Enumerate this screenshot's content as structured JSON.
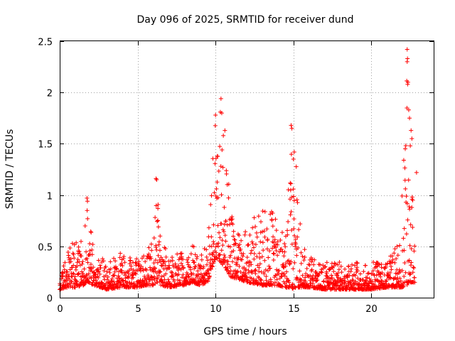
{
  "chart_data": {
    "type": "scatter",
    "title": "Day 096 of 2025, SRMTID for receiver dund",
    "xlabel": "GPS time / hours",
    "ylabel": "SRMTID / TECUs",
    "xlim": [
      0,
      24
    ],
    "ylim": [
      0,
      2.5
    ],
    "xticks": [
      0,
      5,
      10,
      15,
      20
    ],
    "xtick_labels": [
      "0",
      "5",
      "10",
      "15",
      "20"
    ],
    "yticks": [
      0,
      0.5,
      1,
      1.5,
      2,
      2.5
    ],
    "ytick_labels": [
      "0",
      "0.5",
      "1",
      "1.5",
      "2",
      "2.5"
    ],
    "grid": true,
    "marker": "+",
    "series": [
      {
        "name": "SRMTID",
        "color": "#ff0000",
        "envelope": {
          "hours": [
            0,
            0.5,
            1,
            1.5,
            1.8,
            2.2,
            3,
            4,
            5,
            5.5,
            6,
            6.3,
            6.5,
            7,
            8,
            8.5,
            9,
            9.5,
            9.8,
            10.0,
            10.3,
            10.6,
            11,
            11.5,
            12,
            13,
            14,
            14.5,
            14.9,
            15.2,
            15.6,
            16,
            17,
            18,
            19,
            20,
            21,
            21.9,
            22.2,
            22.4,
            22.6,
            22.8
          ],
          "low": [
            0.08,
            0.1,
            0.1,
            0.12,
            0.15,
            0.12,
            0.08,
            0.1,
            0.1,
            0.12,
            0.12,
            0.15,
            0.12,
            0.1,
            0.12,
            0.15,
            0.12,
            0.15,
            0.3,
            0.4,
            0.35,
            0.3,
            0.2,
            0.18,
            0.15,
            0.12,
            0.12,
            0.1,
            0.08,
            0.1,
            0.1,
            0.1,
            0.08,
            0.08,
            0.08,
            0.08,
            0.1,
            0.1,
            0.1,
            0.15,
            0.15,
            0.15
          ],
          "high": [
            0.25,
            0.45,
            0.6,
            0.55,
            0.97,
            0.45,
            0.35,
            0.45,
            0.4,
            0.45,
            0.55,
            1.15,
            0.6,
            0.4,
            0.45,
            0.55,
            0.4,
            0.55,
            1.3,
            1.78,
            1.94,
            1.6,
            0.85,
            0.65,
            0.7,
            0.9,
            0.8,
            0.6,
            1.68,
            1.42,
            0.5,
            0.4,
            0.35,
            0.35,
            0.35,
            0.35,
            0.35,
            0.6,
            2.42,
            1.65,
            1.22,
            0.6
          ]
        },
        "spikes": [
          {
            "x": 1.75,
            "y": 0.97
          },
          {
            "x": 1.78,
            "y": 0.94
          },
          {
            "x": 1.76,
            "y": 0.85
          },
          {
            "x": 6.18,
            "y": 1.16
          },
          {
            "x": 6.22,
            "y": 1.15
          },
          {
            "x": 6.3,
            "y": 0.87
          },
          {
            "x": 10.35,
            "y": 1.94
          },
          {
            "x": 10.0,
            "y": 1.78
          },
          {
            "x": 10.4,
            "y": 1.8
          },
          {
            "x": 10.6,
            "y": 1.63
          },
          {
            "x": 10.5,
            "y": 1.58
          },
          {
            "x": 14.85,
            "y": 1.68
          },
          {
            "x": 14.9,
            "y": 1.65
          },
          {
            "x": 15.05,
            "y": 1.42
          },
          {
            "x": 15.0,
            "y": 1.35
          },
          {
            "x": 22.3,
            "y": 2.42
          },
          {
            "x": 22.32,
            "y": 2.33
          },
          {
            "x": 22.3,
            "y": 2.3
          },
          {
            "x": 22.35,
            "y": 2.1
          },
          {
            "x": 22.33,
            "y": 2.08
          },
          {
            "x": 22.4,
            "y": 1.83
          },
          {
            "x": 22.45,
            "y": 1.75
          },
          {
            "x": 22.55,
            "y": 1.63
          },
          {
            "x": 22.6,
            "y": 1.55
          },
          {
            "x": 22.5,
            "y": 1.48
          },
          {
            "x": 22.9,
            "y": 1.22
          }
        ]
      }
    ]
  }
}
